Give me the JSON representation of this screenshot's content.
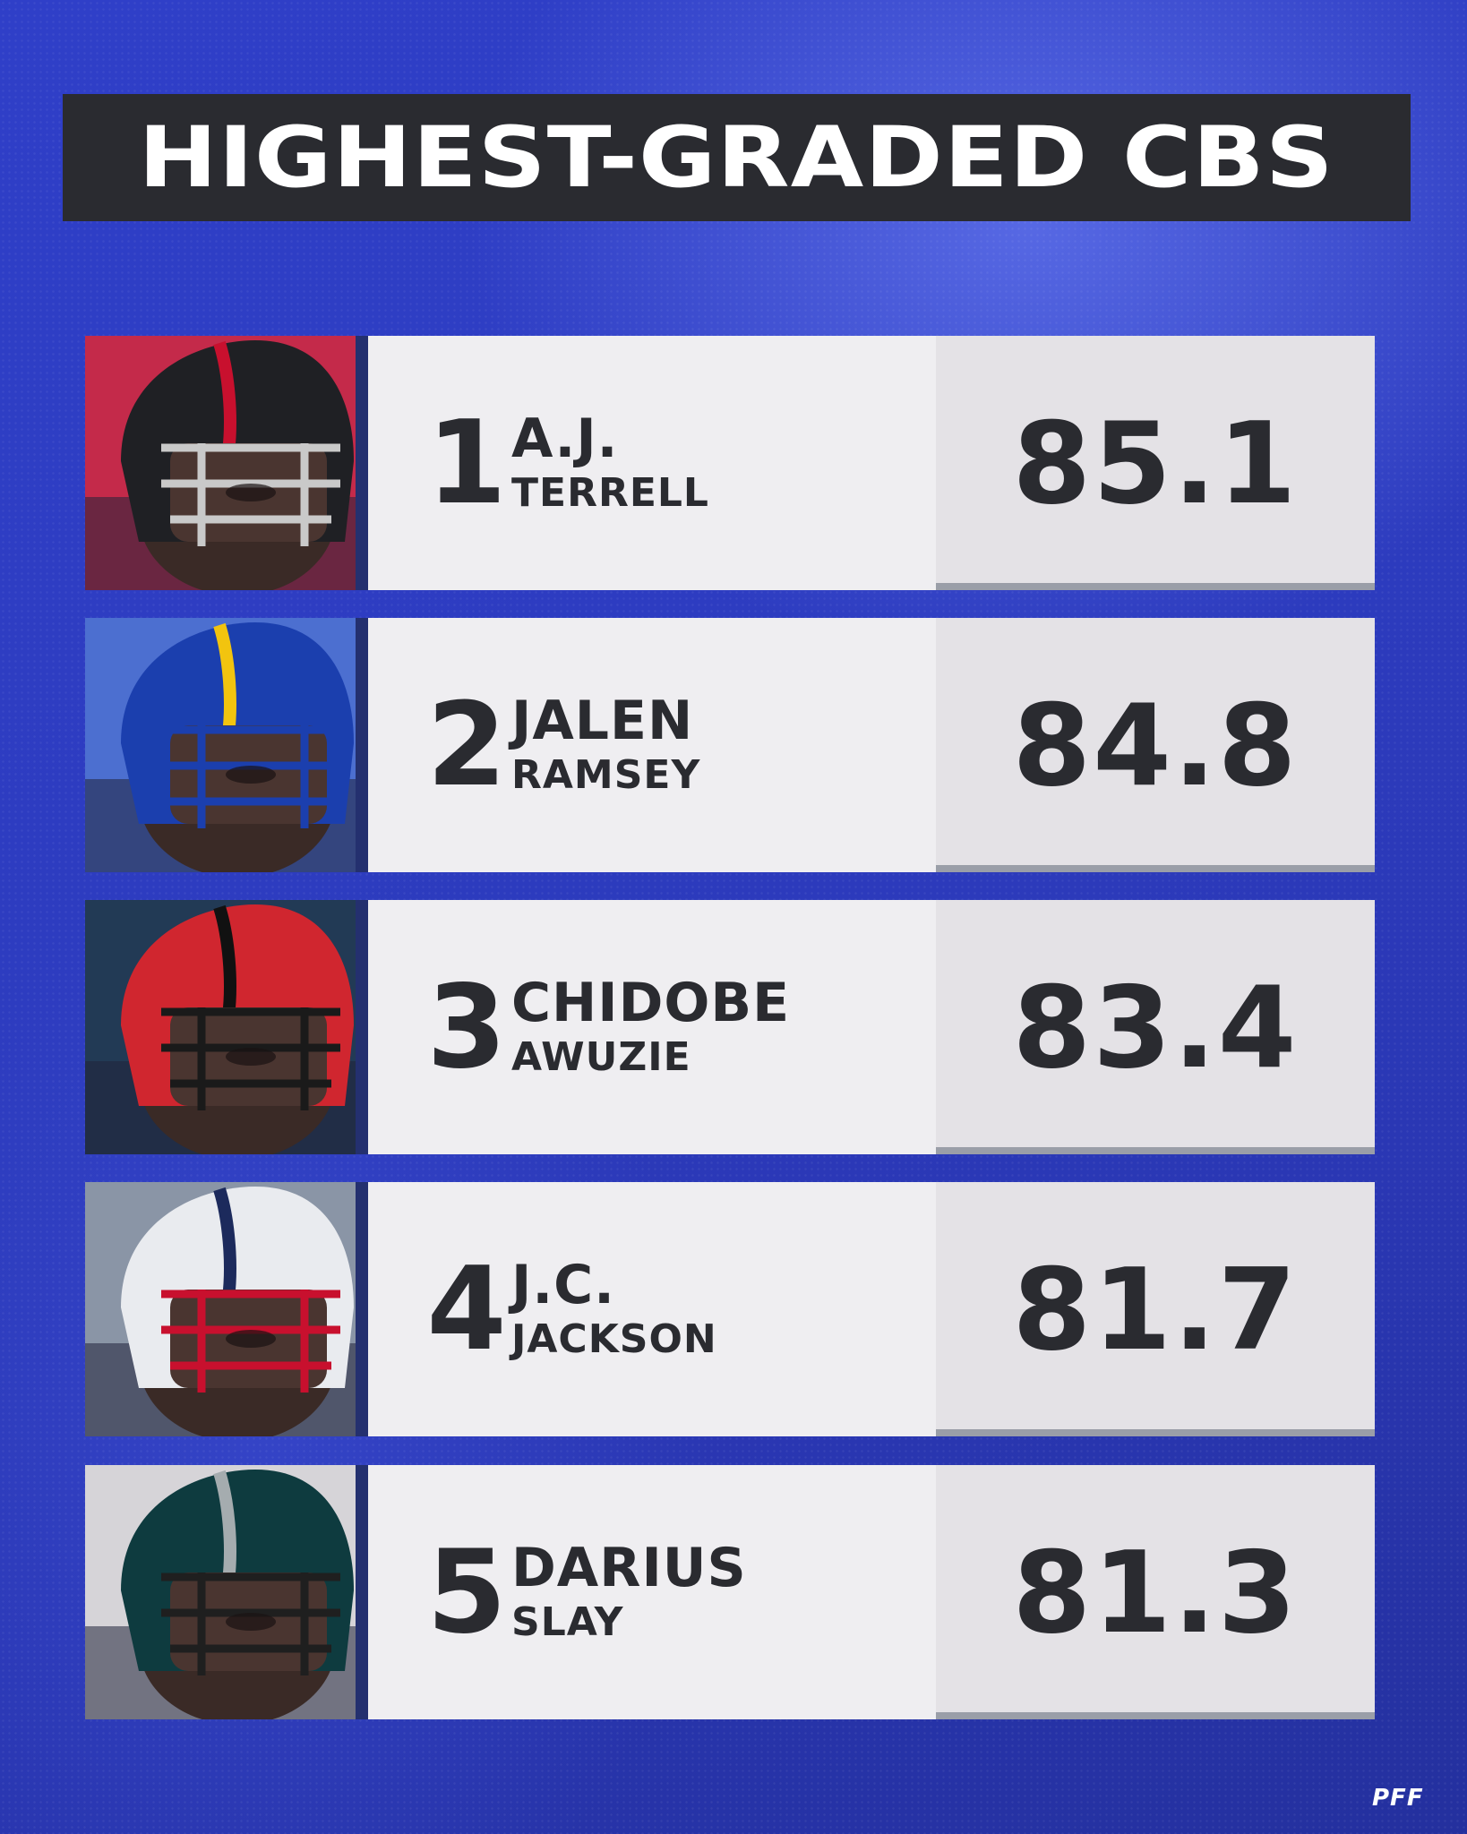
{
  "title": "HIGHEST-GRADED CBS",
  "logo": "PFF",
  "players": [
    {
      "rank": "1",
      "first": "A.J.",
      "last": "TERRELL",
      "grade": "85.1",
      "helmet_icon": "falcons-helmet-icon",
      "colors": {
        "helmet": "#1f2024",
        "accent": "#c8102e",
        "mask": "#c9c9c9",
        "bg": "#c42a4a"
      }
    },
    {
      "rank": "2",
      "first": "JALEN",
      "last": "RAMSEY",
      "grade": "84.8",
      "helmet_icon": "rams-helmet-icon",
      "colors": {
        "helmet": "#1b3fae",
        "accent": "#f2c40f",
        "mask": "#1b3fae",
        "bg": "#4c6fd0"
      }
    },
    {
      "rank": "3",
      "first": "CHIDOBE",
      "last": "AWUZIE",
      "grade": "83.4",
      "helmet_icon": "bengals-helmet-icon",
      "colors": {
        "helmet": "#d0262f",
        "accent": "#111111",
        "mask": "#1a1a1a",
        "bg": "#223a55"
      }
    },
    {
      "rank": "4",
      "first": "J.C.",
      "last": "JACKSON",
      "grade": "81.7",
      "helmet_icon": "patriots-helmet-icon",
      "colors": {
        "helmet": "#e9ebef",
        "accent": "#1c2a5c",
        "mask": "#c8102e",
        "bg": "#8a95a6"
      }
    },
    {
      "rank": "5",
      "first": "DARIUS",
      "last": "SLAY",
      "grade": "81.3",
      "helmet_icon": "eagles-helmet-icon",
      "colors": {
        "helmet": "#0e3b3f",
        "accent": "#a5acaf",
        "mask": "#1f1f1f",
        "bg": "#d6d4d8"
      }
    }
  ]
}
